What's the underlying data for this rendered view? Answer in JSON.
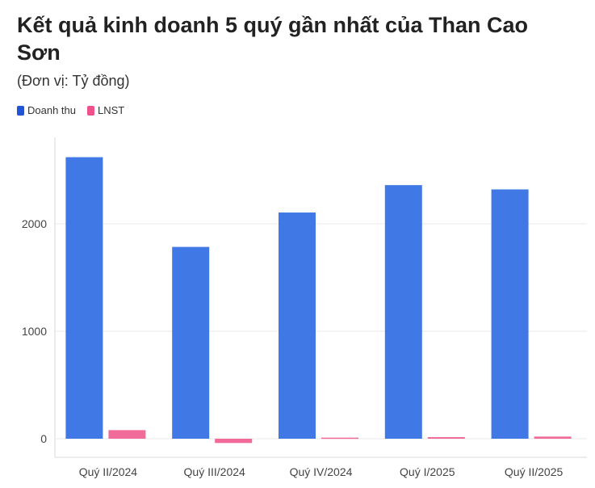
{
  "title": "Kết quả kinh doanh 5 quý gần nhất của Than Cao Sơn",
  "subtitle": "(Đơn vị: Tỷ đồng)",
  "colors": {
    "revenue": "#4079e5",
    "profit": "#f06b9a",
    "grid": "#e8e8e8",
    "axis": "#d8d8d8"
  },
  "chart_data": {
    "type": "bar",
    "categories": [
      "Quý II/2024",
      "Quý III/2024",
      "Quý IV/2024",
      "Quý I/2025",
      "Quý II/2025"
    ],
    "series": [
      {
        "name": "Doanh thu",
        "values": [
          2620,
          1785,
          2105,
          2360,
          2320
        ]
      },
      {
        "name": "LNST",
        "values": [
          80,
          -40,
          10,
          15,
          20
        ]
      }
    ],
    "yticks": [
      0,
      1000,
      2000
    ],
    "ylim": [
      -100,
      2800
    ],
    "legend": "top-left",
    "grid": true
  }
}
